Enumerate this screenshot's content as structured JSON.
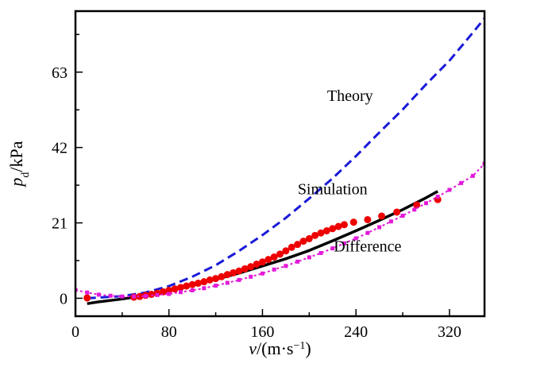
{
  "chart_data": {
    "type": "line",
    "title": "",
    "xlabel": {
      "italic": "v",
      "rest": "/(m·s",
      "sup": "−1",
      "close": ")"
    },
    "ylabel": {
      "italic": "p",
      "sub": "d",
      "rest": "/kPa"
    },
    "xlim": [
      0,
      350
    ],
    "ylim": [
      -5,
      80
    ],
    "x_ticks": [
      0,
      80,
      160,
      240,
      320
    ],
    "y_ticks": [
      0,
      21,
      42,
      63
    ],
    "grid": false,
    "legend": "none",
    "annotations": [
      {
        "text": "Theory",
        "series": "theory",
        "x": 235,
        "y": 55
      },
      {
        "text": "Simulation",
        "series": "simulation",
        "x": 220,
        "y": 29
      },
      {
        "text": "Difference",
        "series": "difference",
        "x": 250,
        "y": 13
      }
    ],
    "series": [
      {
        "key": "theory",
        "style": "dashed",
        "color": "#1a1ad8",
        "x": [
          10,
          40,
          60,
          80,
          100,
          120,
          140,
          160,
          180,
          200,
          220,
          240,
          260,
          280,
          300,
          320,
          340,
          350
        ],
        "y": [
          0.0,
          0.6,
          1.6,
          3.4,
          6.0,
          9.2,
          13.2,
          17.6,
          22.4,
          27.8,
          33.4,
          39.6,
          46.2,
          52.6,
          59.6,
          66.2,
          74.0,
          78.0
        ]
      },
      {
        "key": "simulation",
        "style": "solid",
        "color": "#000000",
        "x": [
          10,
          20,
          40,
          60,
          80,
          100,
          120,
          140,
          160,
          180,
          200,
          220,
          240,
          260,
          280,
          300,
          310
        ],
        "y": [
          -1.5,
          -1.0,
          -0.2,
          0.8,
          2.2,
          3.6,
          5.3,
          7.0,
          9.0,
          11.0,
          13.3,
          16.0,
          18.8,
          21.7,
          24.7,
          28.0,
          29.8
        ]
      },
      {
        "key": "experiment",
        "style": "markers",
        "color": "#ee0000",
        "x": [
          10,
          50,
          55,
          60,
          65,
          70,
          75,
          80,
          85,
          90,
          95,
          100,
          105,
          110,
          115,
          120,
          125,
          130,
          135,
          140,
          145,
          150,
          155,
          160,
          165,
          170,
          175,
          180,
          185,
          190,
          195,
          200,
          205,
          210,
          215,
          220,
          225,
          230,
          238,
          250,
          262,
          275,
          292,
          310
        ],
        "y": [
          0.1,
          0.3,
          0.5,
          0.8,
          1.1,
          1.4,
          1.8,
          2.2,
          2.6,
          3.0,
          3.4,
          3.8,
          4.2,
          4.6,
          5.1,
          5.5,
          6.0,
          6.6,
          7.1,
          7.6,
          8.2,
          8.8,
          9.5,
          10.1,
          10.8,
          11.5,
          12.3,
          13.2,
          14.2,
          15.0,
          15.9,
          16.6,
          17.5,
          18.2,
          18.8,
          19.4,
          20.0,
          20.5,
          21.2,
          21.9,
          22.9,
          24.0,
          26.0,
          27.5
        ]
      },
      {
        "key": "difference",
        "style": "dotted-markers",
        "color": "#e21ad8",
        "x": [
          0,
          10,
          20,
          30,
          40,
          50,
          60,
          70,
          80,
          90,
          100,
          110,
          120,
          130,
          140,
          150,
          160,
          170,
          180,
          190,
          200,
          210,
          220,
          230,
          240,
          250,
          260,
          270,
          280,
          290,
          300,
          310,
          320,
          330,
          340,
          350
        ],
        "y": [
          2.3,
          1.6,
          1.0,
          0.7,
          0.5,
          0.5,
          0.6,
          0.9,
          1.2,
          1.7,
          2.2,
          2.8,
          3.5,
          4.3,
          5.1,
          6.0,
          6.9,
          8.0,
          9.0,
          10.2,
          11.4,
          12.6,
          13.9,
          15.3,
          16.7,
          18.2,
          19.8,
          21.4,
          23.0,
          24.7,
          26.5,
          28.3,
          30.2,
          32.1,
          34.1,
          37.5
        ]
      }
    ]
  }
}
